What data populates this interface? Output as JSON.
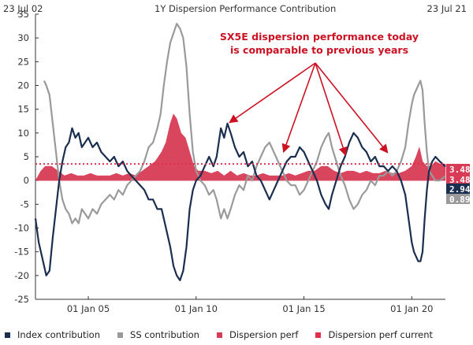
{
  "header": {
    "start_date": "23 Jul 02",
    "title": "1Y Dispersion Performance Contribution",
    "end_date": "23 Jul 21"
  },
  "annotation": {
    "line1": "SX5E dispersion performance today",
    "line2": "is comparable to previous years",
    "color": "#cc1122"
  },
  "chart_data": {
    "type": "line",
    "title": "1Y Dispersion Performance Contribution",
    "date_range": [
      "23 Jul 02",
      "23 Jul 21"
    ],
    "x_tick_labels": [
      "01 Jan 05",
      "01 Jan 10",
      "01 Jan 15",
      "01 Jan 20"
    ],
    "y_tick_labels": [
      "35",
      "30",
      "25",
      "20",
      "15",
      "10",
      "5",
      "0",
      "-5",
      "-10",
      "-15",
      "-20",
      "-25"
    ],
    "ylim": [
      -25,
      35
    ],
    "grid": false,
    "legend_position": "bottom",
    "series": [
      {
        "name": "Index contribution",
        "color": "#1a2e4f",
        "points": [
          [
            2002.55,
            -8
          ],
          [
            2002.7,
            -13
          ],
          [
            2002.9,
            -17
          ],
          [
            2003.05,
            -20
          ],
          [
            2003.2,
            -19
          ],
          [
            2003.35,
            -12
          ],
          [
            2003.5,
            -6
          ],
          [
            2003.65,
            0
          ],
          [
            2003.8,
            4
          ],
          [
            2003.95,
            7
          ],
          [
            2004.1,
            8
          ],
          [
            2004.25,
            11
          ],
          [
            2004.4,
            9
          ],
          [
            2004.55,
            10
          ],
          [
            2004.7,
            7
          ],
          [
            2004.85,
            8
          ],
          [
            2005.0,
            9
          ],
          [
            2005.2,
            7
          ],
          [
            2005.4,
            8
          ],
          [
            2005.6,
            6
          ],
          [
            2005.8,
            5
          ],
          [
            2006.0,
            4
          ],
          [
            2006.2,
            5
          ],
          [
            2006.4,
            3
          ],
          [
            2006.6,
            4
          ],
          [
            2006.8,
            2
          ],
          [
            2007.0,
            1
          ],
          [
            2007.2,
            0
          ],
          [
            2007.4,
            -1
          ],
          [
            2007.6,
            -2
          ],
          [
            2007.8,
            -4
          ],
          [
            2008.0,
            -4
          ],
          [
            2008.2,
            -6
          ],
          [
            2008.4,
            -6
          ],
          [
            2008.6,
            -10
          ],
          [
            2008.8,
            -14
          ],
          [
            2008.95,
            -18
          ],
          [
            2009.1,
            -20
          ],
          [
            2009.25,
            -21
          ],
          [
            2009.4,
            -19
          ],
          [
            2009.55,
            -14
          ],
          [
            2009.7,
            -6
          ],
          [
            2009.85,
            -2
          ],
          [
            2010.0,
            0
          ],
          [
            2010.2,
            1
          ],
          [
            2010.4,
            3
          ],
          [
            2010.6,
            5
          ],
          [
            2010.8,
            3
          ],
          [
            2010.95,
            5
          ],
          [
            2011.05,
            8
          ],
          [
            2011.15,
            11
          ],
          [
            2011.3,
            9
          ],
          [
            2011.45,
            12
          ],
          [
            2011.6,
            10
          ],
          [
            2011.8,
            7
          ],
          [
            2012.0,
            5
          ],
          [
            2012.2,
            6
          ],
          [
            2012.4,
            3
          ],
          [
            2012.6,
            4
          ],
          [
            2012.8,
            1
          ],
          [
            2013.0,
            0
          ],
          [
            2013.2,
            -2
          ],
          [
            2013.4,
            -4
          ],
          [
            2013.6,
            -2
          ],
          [
            2013.8,
            0
          ],
          [
            2014.0,
            2
          ],
          [
            2014.2,
            4
          ],
          [
            2014.4,
            5
          ],
          [
            2014.6,
            5
          ],
          [
            2014.8,
            7
          ],
          [
            2015.0,
            6
          ],
          [
            2015.2,
            4
          ],
          [
            2015.4,
            2
          ],
          [
            2015.6,
            0
          ],
          [
            2015.8,
            -3
          ],
          [
            2016.0,
            -5
          ],
          [
            2016.15,
            -6
          ],
          [
            2016.3,
            -3
          ],
          [
            2016.5,
            0
          ],
          [
            2016.7,
            3
          ],
          [
            2016.9,
            5
          ],
          [
            2017.1,
            8
          ],
          [
            2017.3,
            10
          ],
          [
            2017.5,
            9
          ],
          [
            2017.7,
            7
          ],
          [
            2017.9,
            6
          ],
          [
            2018.1,
            4
          ],
          [
            2018.3,
            5
          ],
          [
            2018.5,
            3
          ],
          [
            2018.7,
            3
          ],
          [
            2018.9,
            2
          ],
          [
            2019.1,
            3
          ],
          [
            2019.3,
            2
          ],
          [
            2019.5,
            0
          ],
          [
            2019.7,
            -3
          ],
          [
            2019.85,
            -8
          ],
          [
            2020.0,
            -13
          ],
          [
            2020.1,
            -15
          ],
          [
            2020.2,
            -16
          ],
          [
            2020.3,
            -17
          ],
          [
            2020.4,
            -17
          ],
          [
            2020.5,
            -15
          ],
          [
            2020.6,
            -8
          ],
          [
            2020.7,
            -2
          ],
          [
            2020.8,
            2
          ],
          [
            2020.95,
            4
          ],
          [
            2021.1,
            5
          ],
          [
            2021.3,
            4
          ],
          [
            2021.56,
            2.94
          ]
        ]
      },
      {
        "name": "SS contribution",
        "color": "#9a9a9a",
        "points": [
          [
            2002.95,
            21
          ],
          [
            2003.05,
            20
          ],
          [
            2003.2,
            18
          ],
          [
            2003.35,
            12
          ],
          [
            2003.5,
            6
          ],
          [
            2003.65,
            0
          ],
          [
            2003.8,
            -4
          ],
          [
            2003.95,
            -6
          ],
          [
            2004.1,
            -7
          ],
          [
            2004.25,
            -9
          ],
          [
            2004.4,
            -8
          ],
          [
            2004.55,
            -9
          ],
          [
            2004.7,
            -6
          ],
          [
            2004.85,
            -7
          ],
          [
            2005.0,
            -8
          ],
          [
            2005.2,
            -6
          ],
          [
            2005.4,
            -7
          ],
          [
            2005.6,
            -5
          ],
          [
            2005.8,
            -4
          ],
          [
            2006.0,
            -3
          ],
          [
            2006.2,
            -4
          ],
          [
            2006.4,
            -2
          ],
          [
            2006.6,
            -3
          ],
          [
            2006.8,
            -1
          ],
          [
            2007.0,
            0
          ],
          [
            2007.2,
            1
          ],
          [
            2007.4,
            2
          ],
          [
            2007.6,
            4
          ],
          [
            2007.8,
            7
          ],
          [
            2008.0,
            8
          ],
          [
            2008.2,
            11
          ],
          [
            2008.35,
            14
          ],
          [
            2008.5,
            20
          ],
          [
            2008.65,
            25
          ],
          [
            2008.8,
            29
          ],
          [
            2008.95,
            31
          ],
          [
            2009.1,
            33
          ],
          [
            2009.25,
            32
          ],
          [
            2009.4,
            30
          ],
          [
            2009.55,
            24
          ],
          [
            2009.7,
            14
          ],
          [
            2009.85,
            6
          ],
          [
            2010.0,
            2
          ],
          [
            2010.2,
            0
          ],
          [
            2010.4,
            -1
          ],
          [
            2010.6,
            -3
          ],
          [
            2010.8,
            -2
          ],
          [
            2010.95,
            -4
          ],
          [
            2011.05,
            -6
          ],
          [
            2011.15,
            -8
          ],
          [
            2011.3,
            -6
          ],
          [
            2011.45,
            -8
          ],
          [
            2011.6,
            -6
          ],
          [
            2011.8,
            -3
          ],
          [
            2012.0,
            -1
          ],
          [
            2012.2,
            -2
          ],
          [
            2012.4,
            1
          ],
          [
            2012.6,
            0
          ],
          [
            2012.8,
            3
          ],
          [
            2013.0,
            5
          ],
          [
            2013.2,
            7
          ],
          [
            2013.4,
            8
          ],
          [
            2013.6,
            6
          ],
          [
            2013.8,
            4
          ],
          [
            2014.0,
            2
          ],
          [
            2014.2,
            0
          ],
          [
            2014.4,
            -1
          ],
          [
            2014.6,
            -1
          ],
          [
            2014.8,
            -3
          ],
          [
            2015.0,
            -2
          ],
          [
            2015.2,
            0
          ],
          [
            2015.4,
            2
          ],
          [
            2015.6,
            4
          ],
          [
            2015.8,
            7
          ],
          [
            2016.0,
            9
          ],
          [
            2016.15,
            10
          ],
          [
            2016.3,
            7
          ],
          [
            2016.5,
            4
          ],
          [
            2016.7,
            1
          ],
          [
            2016.9,
            -1
          ],
          [
            2017.1,
            -4
          ],
          [
            2017.3,
            -6
          ],
          [
            2017.5,
            -5
          ],
          [
            2017.7,
            -3
          ],
          [
            2017.9,
            -2
          ],
          [
            2018.1,
            0
          ],
          [
            2018.3,
            -1
          ],
          [
            2018.5,
            1
          ],
          [
            2018.7,
            1
          ],
          [
            2018.9,
            2
          ],
          [
            2019.1,
            1
          ],
          [
            2019.3,
            2
          ],
          [
            2019.5,
            4
          ],
          [
            2019.7,
            7
          ],
          [
            2019.85,
            12
          ],
          [
            2020.0,
            16
          ],
          [
            2020.1,
            18
          ],
          [
            2020.2,
            19
          ],
          [
            2020.3,
            20
          ],
          [
            2020.4,
            21
          ],
          [
            2020.5,
            19
          ],
          [
            2020.6,
            12
          ],
          [
            2020.7,
            6
          ],
          [
            2020.8,
            2
          ],
          [
            2020.95,
            1
          ],
          [
            2021.1,
            0
          ],
          [
            2021.3,
            0
          ],
          [
            2021.56,
            0.89
          ]
        ]
      },
      {
        "name": "Dispersion perf",
        "color": "#d83b55",
        "style": "area",
        "points": [
          [
            2002.55,
            0
          ],
          [
            2002.8,
            2
          ],
          [
            2003.0,
            3
          ],
          [
            2003.3,
            3
          ],
          [
            2003.6,
            2
          ],
          [
            2003.9,
            1
          ],
          [
            2004.2,
            1.5
          ],
          [
            2004.5,
            1
          ],
          [
            2004.8,
            1
          ],
          [
            2005.1,
            1.5
          ],
          [
            2005.4,
            1
          ],
          [
            2005.7,
            1
          ],
          [
            2006.0,
            1
          ],
          [
            2006.3,
            1.5
          ],
          [
            2006.6,
            1
          ],
          [
            2006.9,
            1.5
          ],
          [
            2007.2,
            1
          ],
          [
            2007.5,
            2
          ],
          [
            2007.8,
            3
          ],
          [
            2008.1,
            4
          ],
          [
            2008.4,
            6
          ],
          [
            2008.6,
            8
          ],
          [
            2008.8,
            12
          ],
          [
            2008.95,
            14
          ],
          [
            2009.1,
            13
          ],
          [
            2009.3,
            10
          ],
          [
            2009.5,
            9
          ],
          [
            2009.7,
            6
          ],
          [
            2009.9,
            3
          ],
          [
            2010.1,
            2
          ],
          [
            2010.4,
            2
          ],
          [
            2010.7,
            1.5
          ],
          [
            2011.0,
            2
          ],
          [
            2011.3,
            1
          ],
          [
            2011.6,
            2
          ],
          [
            2011.9,
            1
          ],
          [
            2012.2,
            1.5
          ],
          [
            2012.5,
            1
          ],
          [
            2012.8,
            1
          ],
          [
            2013.1,
            1.5
          ],
          [
            2013.4,
            1
          ],
          [
            2013.7,
            1
          ],
          [
            2014.0,
            1
          ],
          [
            2014.3,
            1.5
          ],
          [
            2014.6,
            1
          ],
          [
            2014.9,
            1.5
          ],
          [
            2015.2,
            2
          ],
          [
            2015.5,
            2
          ],
          [
            2015.8,
            3
          ],
          [
            2016.1,
            3
          ],
          [
            2016.4,
            2
          ],
          [
            2016.7,
            1.5
          ],
          [
            2017.0,
            2
          ],
          [
            2017.3,
            2
          ],
          [
            2017.6,
            1.5
          ],
          [
            2017.9,
            2
          ],
          [
            2018.2,
            1.5
          ],
          [
            2018.5,
            1.5
          ],
          [
            2018.8,
            2
          ],
          [
            2019.1,
            1.5
          ],
          [
            2019.4,
            1.5
          ],
          [
            2019.7,
            2
          ],
          [
            2020.0,
            3
          ],
          [
            2020.2,
            5
          ],
          [
            2020.35,
            7
          ],
          [
            2020.5,
            4
          ],
          [
            2020.7,
            3
          ],
          [
            2020.9,
            3
          ],
          [
            2021.1,
            4
          ],
          [
            2021.3,
            3.5
          ],
          [
            2021.56,
            3.48
          ]
        ]
      },
      {
        "name": "Dispersion perf current",
        "color": "#e0304a",
        "style": "dotted",
        "value": 3.48
      }
    ],
    "last_value_labels": [
      {
        "value": "3.48",
        "bg": "#d83b55",
        "color": "#ffffff"
      },
      {
        "value": "3.48",
        "bg": "#d83b55",
        "color": "#ffffff"
      },
      {
        "value": "2.94",
        "bg": "#1a2e4f",
        "color": "#ffffff"
      },
      {
        "value": "0.89",
        "bg": "#9a9a9a",
        "color": "#ffffff"
      }
    ]
  },
  "legend": {
    "items": [
      {
        "label": "Index contribution",
        "color": "#1a2e4f"
      },
      {
        "label": "SS contribution",
        "color": "#9a9a9a"
      },
      {
        "label": "Dispersion perf",
        "color": "#d83b55"
      },
      {
        "label": "Dispersion perf current",
        "color": "#e0304a"
      }
    ]
  }
}
